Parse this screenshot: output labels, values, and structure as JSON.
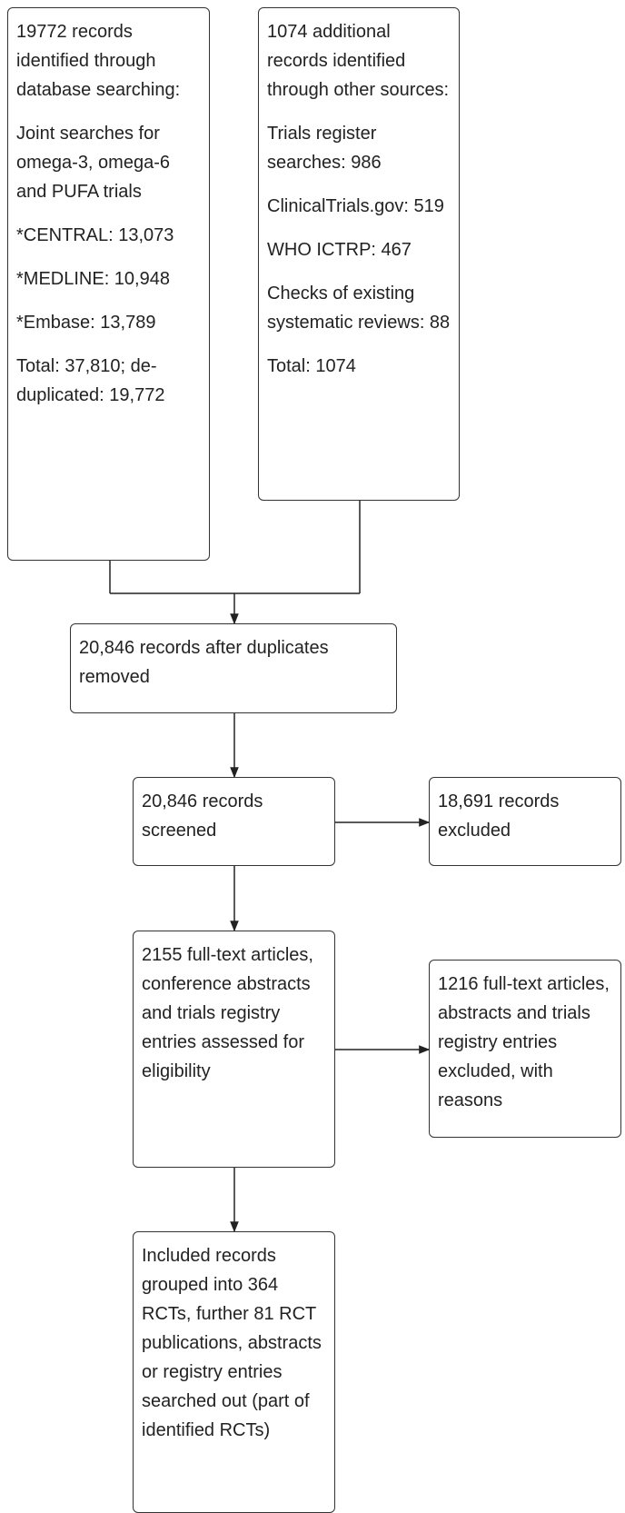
{
  "db_search": {
    "heading": "19772 records identified through database searching:",
    "joint": "Joint searches for omega-3, omega-6 and PUFA trials",
    "central": "*CENTRAL: 13,073",
    "medline": "*MEDLINE: 10,948",
    "embase": "*Embase: 13,789",
    "total": "Total: 37,810; de-duplicated: 19,772"
  },
  "other_sources": {
    "heading": "1074 additional records identified through other sources:",
    "trials_register": "Trials register searches: 986",
    "clinicaltrials": "ClinicalTrials.gov: 519",
    "who_ictrp": "WHO ICTRP: 467",
    "checks": "Checks of existing systematic reviews: 88",
    "total": "Total: 1074"
  },
  "after_duplicates": "20,846 records after duplicates removed",
  "screened": "20,846 records screened",
  "excluded_screen": "18,691 records excluded",
  "assessed": "2155 full-text articles, conference abstracts and trials registry entries assessed for eligibility",
  "excluded_fulltext": "1216 full-text articles, abstracts and trials registry entries excluded, with reasons",
  "included": "Included records grouped into 364 RCTs, further 81 RCT publications, abstracts or registry entries searched out (part of identified RCTs)"
}
